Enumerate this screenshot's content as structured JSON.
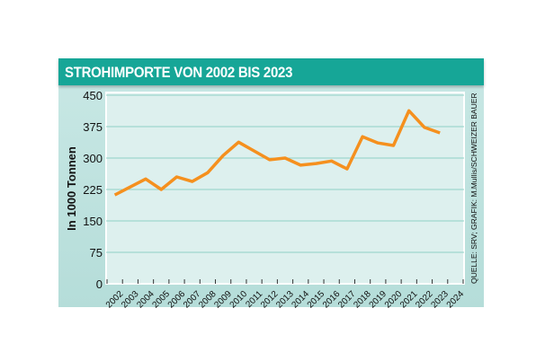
{
  "chart_data": {
    "type": "line",
    "title": "STROHIMPORTE VON 2002 BIS 2023",
    "ylabel": "In 1000 Tonnen",
    "xlabel": "",
    "source": "QUELLE: SRV; GRAFIK: M.Mullis/SCHWEIZER BAUER",
    "ylim": [
      0,
      450
    ],
    "yticks": [
      0,
      75,
      150,
      225,
      300,
      375,
      450
    ],
    "categories": [
      "2002",
      "2003",
      "2004",
      "2005",
      "2006",
      "2007",
      "2008",
      "2009",
      "2010",
      "2011",
      "2012",
      "2013",
      "2014",
      "2015",
      "2016",
      "2017",
      "2018",
      "2019",
      "2020",
      "2021",
      "2022",
      "2023",
      "2024"
    ],
    "values": [
      212,
      231,
      250,
      225,
      255,
      244,
      265,
      306,
      338,
      317,
      296,
      300,
      283,
      287,
      293,
      274,
      351,
      336,
      330,
      413,
      373,
      360,
      null
    ],
    "grid": true,
    "colors": {
      "line": "#f5901e",
      "title_bar": "#16a697",
      "plot_bg": "#ddf0ee",
      "grid": "#8fd0c6"
    }
  }
}
